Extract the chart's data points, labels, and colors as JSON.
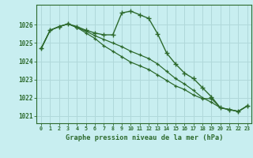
{
  "title": "Graphe pression niveau de la mer (hPa)",
  "background_color": "#c8eef0",
  "grid_color": "#b0d8da",
  "line_color": "#2d6a2d",
  "xlim": [
    -0.5,
    23.5
  ],
  "ylim": [
    1020.6,
    1027.1
  ],
  "yticks": [
    1021,
    1022,
    1023,
    1024,
    1025,
    1026
  ],
  "xticks": [
    0,
    1,
    2,
    3,
    4,
    5,
    6,
    7,
    8,
    9,
    10,
    11,
    12,
    13,
    14,
    15,
    16,
    17,
    18,
    19,
    20,
    21,
    22,
    23
  ],
  "series1": [
    1024.7,
    1025.7,
    1025.9,
    1026.05,
    1025.9,
    1025.7,
    1025.55,
    1025.45,
    1025.45,
    1026.65,
    1026.75,
    1026.55,
    1026.35,
    1025.5,
    1024.45,
    1023.85,
    1023.35,
    1023.05,
    1022.55,
    1022.05,
    1021.45,
    1021.35,
    1021.25,
    1021.55
  ],
  "series2": [
    1024.7,
    1025.7,
    1025.9,
    1026.05,
    1025.85,
    1025.65,
    1025.4,
    1025.2,
    1025.0,
    1024.8,
    1024.55,
    1024.35,
    1024.15,
    1023.85,
    1023.45,
    1023.05,
    1022.75,
    1022.4,
    1022.0,
    1021.75,
    1021.45,
    1021.35,
    1021.25,
    1021.55
  ],
  "series3": [
    1024.7,
    1025.7,
    1025.9,
    1026.05,
    1025.85,
    1025.55,
    1025.25,
    1024.85,
    1024.55,
    1024.25,
    1023.95,
    1023.75,
    1023.55,
    1023.25,
    1022.95,
    1022.65,
    1022.45,
    1022.15,
    1021.95,
    1021.95,
    1021.45,
    1021.35,
    1021.25,
    1021.55
  ]
}
